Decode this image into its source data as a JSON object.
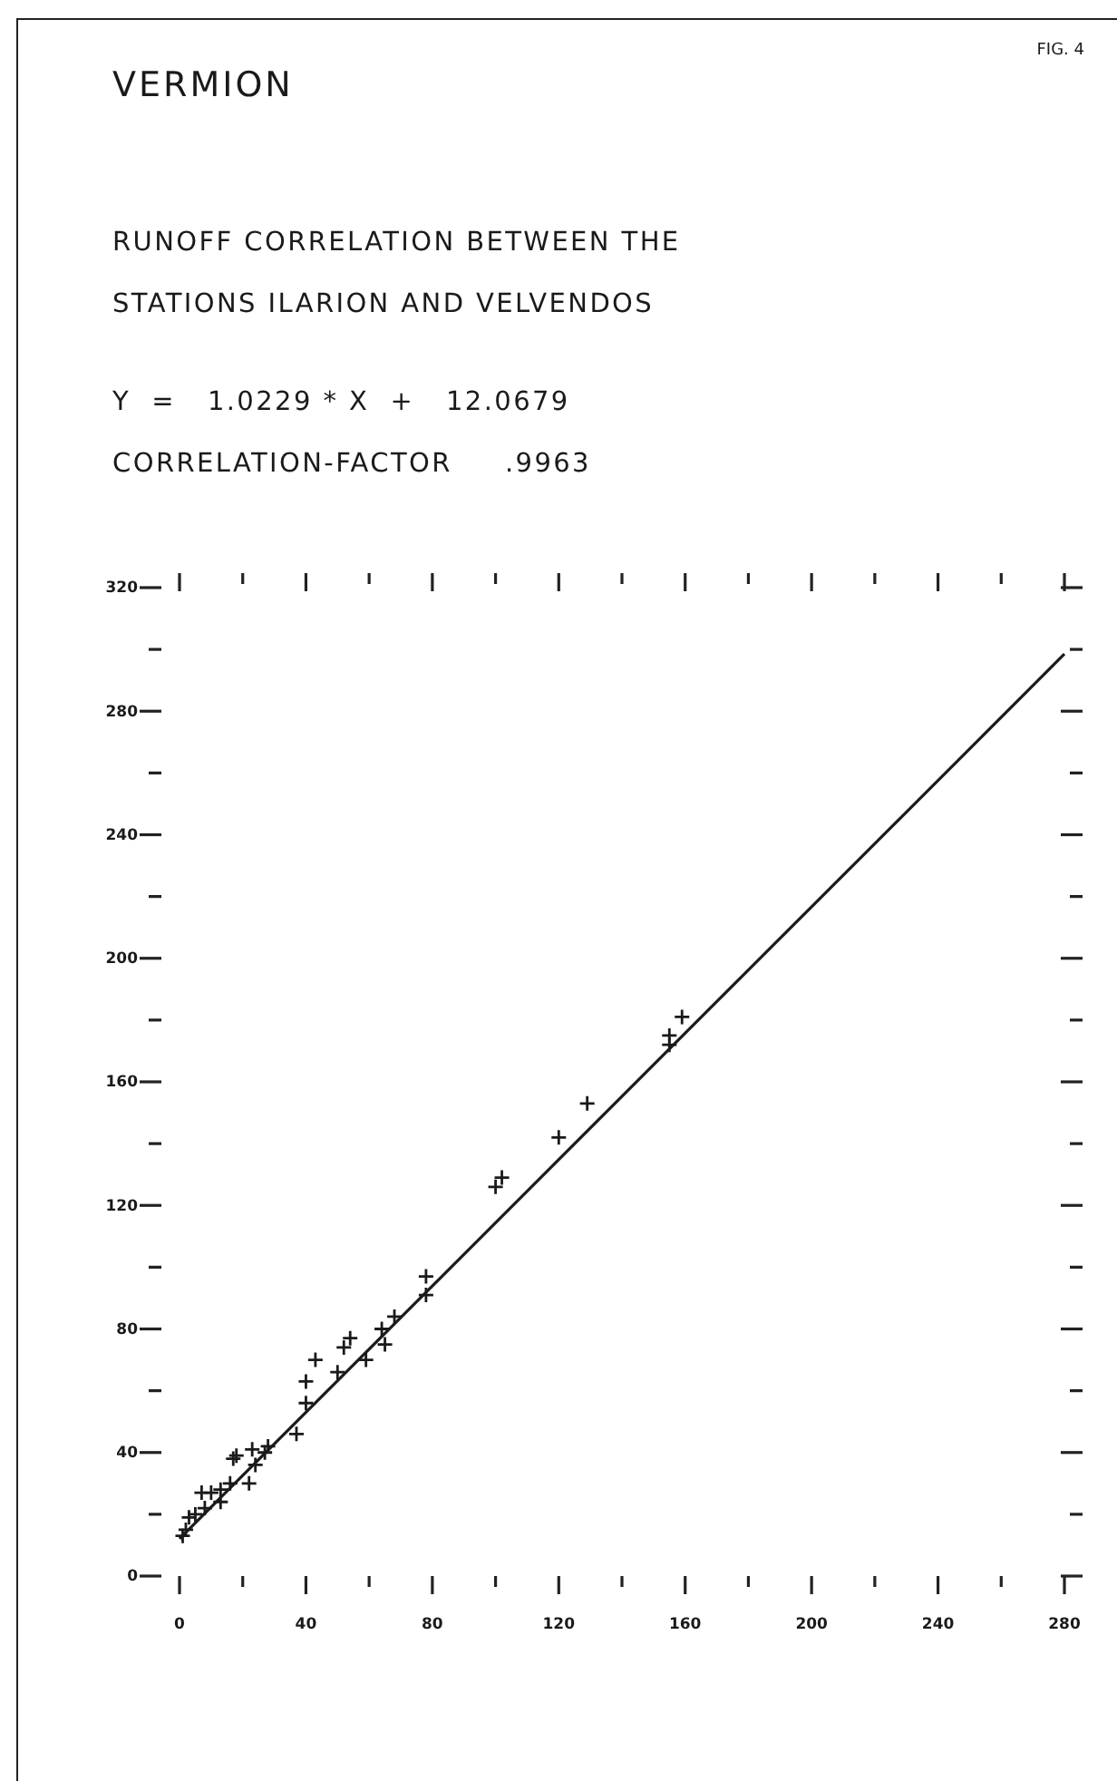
{
  "chart_data": {
    "type": "scatter",
    "title": "VERMION",
    "subtitle": "RUNOFF CORRELATION BETWEEN THE STATIONS ILARION AND VELVENDOS",
    "annotations": [
      "FIG. 4",
      "Y  =   1.0229 * X  +   12.0679",
      "CORRELATION-FACTOR     .9963"
    ],
    "marker": "cross",
    "xlim": [
      0,
      280
    ],
    "ylim": [
      0,
      320
    ],
    "xticks": [
      0,
      {
        "value": 20,
        "label": null
      },
      40,
      {
        "value": 60,
        "label": null
      },
      80,
      {
        "value": 100,
        "label": null
      },
      120,
      {
        "value": 140,
        "label": null
      },
      160,
      {
        "value": 180,
        "label": null
      },
      200,
      {
        "value": 220,
        "label": null
      },
      240,
      {
        "value": 260,
        "label": null
      },
      280
    ],
    "yticks": [
      0,
      {
        "value": 20,
        "label": null
      },
      40,
      {
        "value": 60,
        "label": null
      },
      80,
      {
        "value": 100,
        "label": null
      },
      120,
      {
        "value": 140,
        "label": null
      },
      160,
      {
        "value": 180,
        "label": null
      },
      200,
      {
        "value": 220,
        "label": null
      },
      240,
      {
        "value": 260,
        "label": null
      },
      280,
      {
        "value": 300,
        "label": null
      },
      320
    ],
    "series": [
      {
        "color": "#1a1a1a",
        "x": [
          1,
          2,
          3,
          5,
          8,
          7,
          10,
          13,
          13,
          16,
          17,
          18,
          22,
          24,
          23,
          27,
          28,
          37,
          40,
          40,
          43,
          50,
          52,
          54,
          59,
          65,
          64,
          68,
          78,
          78,
          100,
          102,
          120,
          129,
          155,
          155,
          159
        ],
        "values": [
          13,
          15,
          19,
          20,
          22,
          27,
          27,
          24,
          28,
          30,
          38,
          39,
          30,
          36,
          41,
          40,
          42,
          46,
          56,
          63,
          70,
          66,
          74,
          77,
          70,
          75,
          80,
          84,
          91,
          97,
          126,
          129,
          142,
          153,
          172,
          175,
          181
        ]
      },
      {
        "type": "line",
        "color": "#1a1a1a",
        "line_style": "solid",
        "marker": "none",
        "x": [
          0,
          280
        ],
        "values": [
          12.1,
          298.5
        ]
      }
    ]
  }
}
